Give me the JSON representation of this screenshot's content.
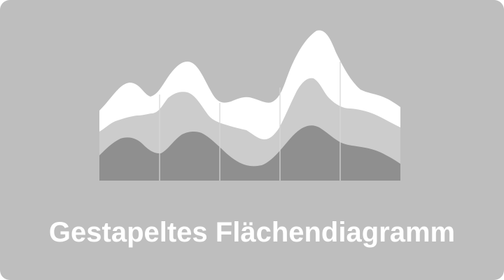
{
  "tile": {
    "label": "Gestapeltes Flächendiagramm",
    "background": "#bebebe",
    "label_color": "#ffffff"
  },
  "icon": {
    "name": "stacked-area-chart-icon",
    "layer_colors": [
      "#8f8f8f",
      "#cccccc",
      "#ffffff"
    ],
    "divider_color": "#d6d6d6"
  }
}
